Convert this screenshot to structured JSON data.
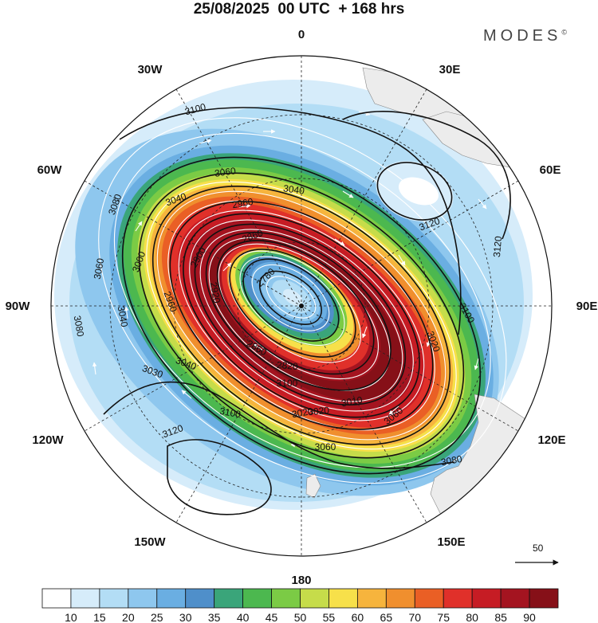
{
  "title": "25/08/2025  00 UTC  + 168 hrs",
  "brand": "MODES",
  "brand_mark": "©",
  "longitude_labels": [
    {
      "name": "lon-0",
      "text": "0"
    },
    {
      "name": "lon-30e",
      "text": "30E"
    },
    {
      "name": "lon-60e",
      "text": "60E"
    },
    {
      "name": "lon-90e",
      "text": "90E"
    },
    {
      "name": "lon-120e",
      "text": "120E"
    },
    {
      "name": "lon-150e",
      "text": "150E"
    },
    {
      "name": "lon-180",
      "text": "180"
    },
    {
      "name": "lon-150w",
      "text": "150W"
    },
    {
      "name": "lon-120w",
      "text": "120W"
    },
    {
      "name": "lon-90w",
      "text": "90W"
    },
    {
      "name": "lon-60w",
      "text": "60W"
    },
    {
      "name": "lon-30w",
      "text": "30W"
    }
  ],
  "contour_labels": [
    "3100",
    "3060",
    "3040",
    "3040",
    "3020",
    "2960",
    "2900",
    "2860",
    "2780",
    "2820",
    "2860",
    "3020",
    "3060",
    "3080",
    "3060",
    "3040",
    "3080",
    "3030",
    "3000",
    "3100",
    "3120",
    "3120",
    "3120",
    "3100",
    "3020",
    "3060",
    "3080",
    "3100",
    "2960",
    "2920",
    "3040",
    "3010"
  ],
  "wind_reference": {
    "value": "50",
    "icon": "arrow-right-icon"
  },
  "colorbar": {
    "labels": [
      "10",
      "15",
      "20",
      "25",
      "30",
      "35",
      "40",
      "45",
      "50",
      "55",
      "60",
      "65",
      "70",
      "75",
      "80",
      "85",
      "90"
    ],
    "colors": [
      "#ffffff",
      "#d6ecfa",
      "#b3ddf5",
      "#8ec7ee",
      "#6aaee2",
      "#4f8fca",
      "#3aa57a",
      "#4cb84f",
      "#7bcb45",
      "#c6dc4a",
      "#f7e04a",
      "#f6b43d",
      "#f08f2e",
      "#ea5f25",
      "#e0302a",
      "#c61c24",
      "#a41420",
      "#861018"
    ]
  }
}
